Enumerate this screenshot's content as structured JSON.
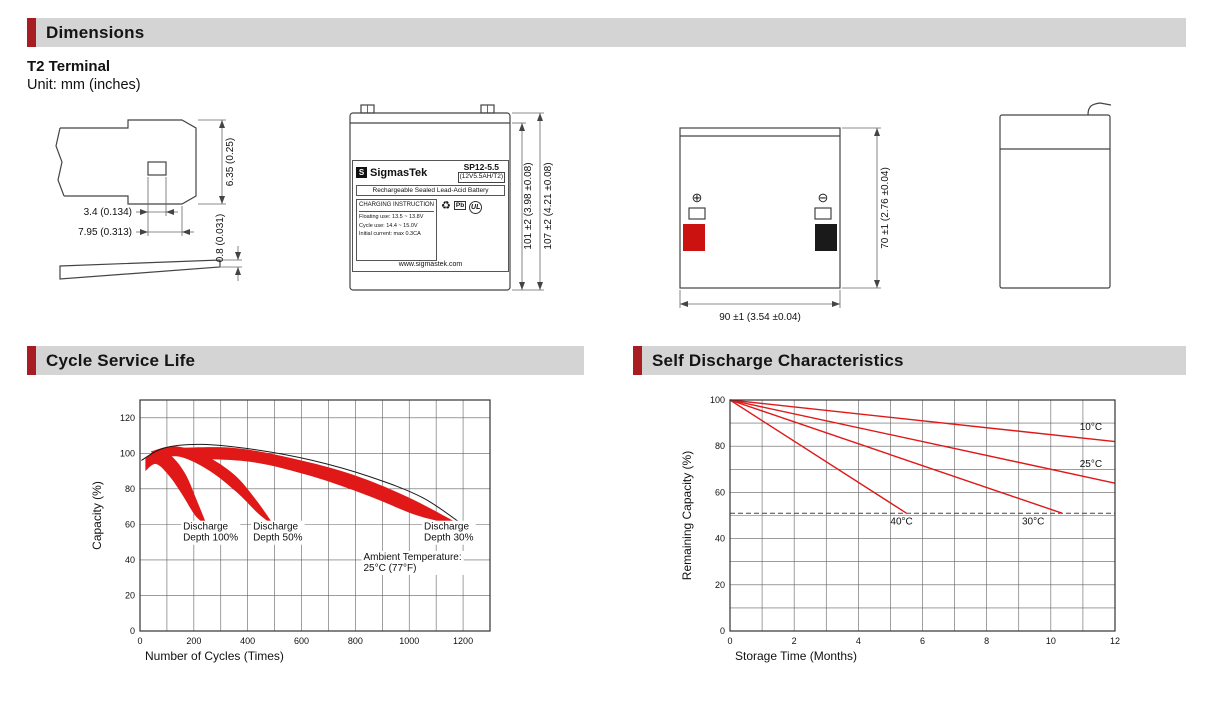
{
  "colors": {
    "accent_red": "#a81d22",
    "header_bg": "#d4d4d4",
    "chart_red": "#e01818",
    "terminal_red": "#cc1111",
    "terminal_black": "#1a1a1a"
  },
  "dimensions_section": {
    "title": "Dimensions",
    "terminal_type": "T2 Terminal",
    "unit_note": "Unit: mm (inches)"
  },
  "terminal_drawing": {
    "hole_width": "3.4 (0.134)",
    "tab_width": "7.95 (0.313)",
    "tab_height": "6.35 (0.25)",
    "thickness": "0.8 (0.031)"
  },
  "front_view": {
    "logo_letter": "S",
    "brand": "SigmasTek",
    "model": "SP12-5.5",
    "spec": "(12V5.5AH/T2)",
    "battery_type": "Rechargeable Sealed Lead-Acid Battery",
    "charging_title": "CHARGING INSTRUCTION",
    "charge_line1": "Floating use: 13.5 ~ 13.8V",
    "charge_line2": "Cycle use: 14.4 ~ 15.0V",
    "charge_line3": "Initial current: max 0.3CA",
    "recycle_icon": "♻",
    "pb_label": "Pb",
    "ul_label": "UL",
    "website": "www.sigmastek.com",
    "inner_height": "101 ±2 (3.98 ±0.08)",
    "overall_height": "107 ±2 (4.21 ±0.08)"
  },
  "rear_view": {
    "positive_symbol": "⊕",
    "negative_symbol": "⊖",
    "width_dim": "90 ±1 (3.54 ±0.04)",
    "height_dim": "70 ±1 (2.76 ±0.04)"
  },
  "cycle_section": {
    "title": "Cycle Service Life"
  },
  "discharge_section": {
    "title": "Self Discharge Characteristics"
  },
  "chart_data": [
    {
      "id": "cycle-life",
      "type": "area",
      "title": "Cycle Service Life",
      "xlabel": "Number of Cycles (Times)",
      "ylabel": "Capacity (%)",
      "xlim": [
        0,
        1300
      ],
      "ylim": [
        0,
        130
      ],
      "x_ticks": [
        0,
        200,
        400,
        600,
        800,
        1000,
        1200
      ],
      "y_ticks": [
        0,
        20,
        40,
        60,
        80,
        100,
        120
      ],
      "x_grid_step": 100,
      "y_grid_step": 20,
      "grid": true,
      "legend_position": "none",
      "envelope_line": {
        "color": "#1a1a1a",
        "points": [
          [
            5,
            96
          ],
          [
            90,
            103
          ],
          [
            230,
            105
          ],
          [
            430,
            102
          ],
          [
            640,
            96
          ],
          [
            850,
            87
          ],
          [
            1050,
            75
          ],
          [
            1215,
            58
          ]
        ]
      },
      "bands": [
        {
          "name": "Discharge Depth 100%",
          "upper": [
            [
              20,
              97
            ],
            [
              70,
              102
            ],
            [
              120,
              98
            ],
            [
              170,
              88
            ],
            [
              215,
              72
            ],
            [
              250,
              59
            ]
          ],
          "lower": [
            [
              20,
              90
            ],
            [
              60,
              94
            ],
            [
              110,
              87
            ],
            [
              160,
              76
            ],
            [
              205,
              65
            ],
            [
              250,
              59
            ]
          ]
        },
        {
          "name": "Discharge Depth 50%",
          "upper": [
            [
              40,
              101
            ],
            [
              130,
              104
            ],
            [
              240,
              99
            ],
            [
              350,
              88
            ],
            [
              430,
              74
            ],
            [
              500,
              59
            ]
          ],
          "lower": [
            [
              60,
              97
            ],
            [
              150,
              98
            ],
            [
              260,
              90
            ],
            [
              360,
              78
            ],
            [
              440,
              66
            ],
            [
              500,
              59
            ]
          ]
        },
        {
          "name": "Discharge Depth 30%",
          "upper": [
            [
              130,
              103
            ],
            [
              350,
              103
            ],
            [
              570,
              97
            ],
            [
              790,
              88
            ],
            [
              1000,
              75
            ],
            [
              1200,
              59
            ]
          ],
          "lower": [
            [
              200,
              97
            ],
            [
              420,
              95
            ],
            [
              640,
              87
            ],
            [
              850,
              76
            ],
            [
              1030,
              65
            ],
            [
              1200,
              59
            ]
          ]
        }
      ],
      "annotations": [
        {
          "text": "Discharge\nDepth 100%",
          "x": 160,
          "y": 57
        },
        {
          "text": "Discharge\nDepth 50%",
          "x": 420,
          "y": 57
        },
        {
          "text": "Discharge\nDepth 30%",
          "x": 1055,
          "y": 57
        },
        {
          "text": "Ambient Temperature:\n25°C (77°F)",
          "x": 830,
          "y": 40
        }
      ]
    },
    {
      "id": "self-discharge",
      "type": "line",
      "title": "Self Discharge Characteristics",
      "xlabel": "Storage Time (Months)",
      "ylabel": "Remaining Capacity (%)",
      "xlim": [
        0,
        12
      ],
      "ylim": [
        0,
        100
      ],
      "x_ticks": [
        0,
        2,
        4,
        6,
        8,
        10,
        12
      ],
      "y_ticks": [
        0,
        20,
        40,
        60,
        80,
        100
      ],
      "x_grid_step": 1,
      "y_grid_step": 10,
      "grid": true,
      "legend_position": "inline-labels",
      "series": [
        {
          "name": "10°C",
          "points": [
            [
              0,
              100
            ],
            [
              12,
              82
            ]
          ],
          "label_x": 10.9,
          "label_y": 87
        },
        {
          "name": "25°C",
          "points": [
            [
              0,
              100
            ],
            [
              12,
              64
            ]
          ],
          "label_x": 10.9,
          "label_y": 71
        },
        {
          "name": "30°C",
          "points": [
            [
              0,
              100
            ],
            [
              10.35,
              51
            ]
          ],
          "label_x": 9.1,
          "label_y": 46
        },
        {
          "name": "40°C",
          "points": [
            [
              0,
              100
            ],
            [
              5.5,
              51
            ]
          ],
          "label_x": 5.0,
          "label_y": 46
        }
      ],
      "reference_line": {
        "y": 51,
        "style": "dashed"
      }
    }
  ]
}
